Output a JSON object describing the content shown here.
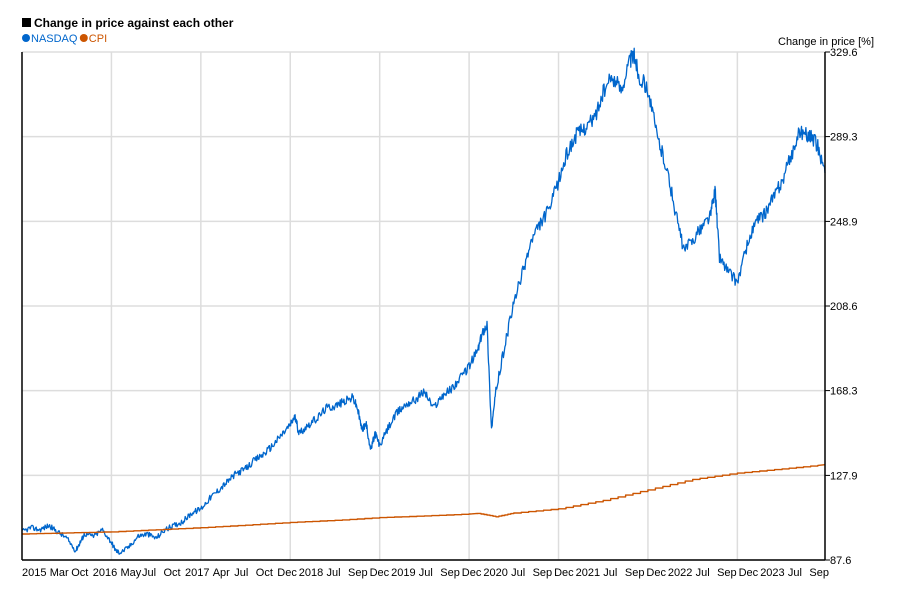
{
  "chart_data": {
    "type": "line",
    "title": "Change in price against each other",
    "ylabel": "Change in price [%]",
    "xlabel": "",
    "ylim": [
      87.6,
      329.6
    ],
    "y_ticks": [
      "87.6",
      "127.9",
      "168.3",
      "208.6",
      "248.9",
      "289.3",
      "329.6"
    ],
    "y_tick_values": [
      87.6,
      127.9,
      168.3,
      208.6,
      248.9,
      289.3,
      329.6
    ],
    "x_ticks": [
      "2015",
      "Mar",
      "Oct",
      "2016",
      "May",
      "Jul",
      "Oct",
      "2017",
      "Apr",
      "Jul",
      "Oct",
      "Dec",
      "2018",
      "Jul",
      "Sep",
      "Dec",
      "2019",
      "Jul",
      "Sep",
      "Dec",
      "2020",
      "Jul",
      "Sep",
      "Dec",
      "2021",
      "Jul",
      "Sep",
      "Dec",
      "2022",
      "Jul",
      "Sep",
      "Dec",
      "2023",
      "Jul",
      "Sep"
    ],
    "x_range": [
      2015.0,
      2023.98
    ],
    "major_years": [
      2016,
      2017,
      2018,
      2019,
      2020,
      2021,
      2022,
      2023
    ],
    "legend_position": "top-left",
    "grid": true,
    "series": [
      {
        "name": "NASDAQ",
        "color": "#0066cc",
        "x": [
          2015.0,
          2015.1,
          2015.2,
          2015.3,
          2015.4,
          2015.5,
          2015.6,
          2015.65,
          2015.7,
          2015.8,
          2015.9,
          2016.0,
          2016.05,
          2016.1,
          2016.2,
          2016.3,
          2016.4,
          2016.5,
          2016.6,
          2016.7,
          2016.8,
          2016.9,
          2017.0,
          2017.1,
          2017.2,
          2017.3,
          2017.4,
          2017.5,
          2017.6,
          2017.7,
          2017.8,
          2017.9,
          2018.0,
          2018.05,
          2018.1,
          2018.2,
          2018.3,
          2018.4,
          2018.5,
          2018.6,
          2018.7,
          2018.75,
          2018.8,
          2018.85,
          2018.9,
          2018.95,
          2019.0,
          2019.1,
          2019.2,
          2019.3,
          2019.4,
          2019.5,
          2019.6,
          2019.7,
          2019.8,
          2019.9,
          2020.0,
          2020.1,
          2020.15,
          2020.2,
          2020.25,
          2020.3,
          2020.4,
          2020.5,
          2020.6,
          2020.7,
          2020.8,
          2020.9,
          2021.0,
          2021.1,
          2021.2,
          2021.3,
          2021.4,
          2021.5,
          2021.6,
          2021.7,
          2021.8,
          2021.85,
          2021.9,
          2022.0,
          2022.1,
          2022.2,
          2022.3,
          2022.4,
          2022.5,
          2022.6,
          2022.7,
          2022.75,
          2022.8,
          2022.9,
          2023.0,
          2023.1,
          2023.2,
          2023.3,
          2023.4,
          2023.5,
          2023.6,
          2023.7,
          2023.8,
          2023.9,
          2023.98
        ],
        "values": [
          101,
          103,
          102,
          104,
          101,
          98,
          92,
          96,
          100,
          99,
          102,
          96,
          92,
          91,
          94,
          99,
          100,
          98,
          102,
          104,
          106,
          110,
          112,
          117,
          121,
          125,
          129,
          131,
          135,
          138,
          142,
          147,
          152,
          156,
          148,
          152,
          155,
          160,
          161,
          163,
          165,
          160,
          150,
          152,
          140,
          148,
          142,
          151,
          158,
          162,
          164,
          168,
          160,
          166,
          169,
          174,
          180,
          188,
          196,
          200,
          150,
          168,
          190,
          210,
          225,
          240,
          248,
          255,
          268,
          282,
          290,
          294,
          298,
          310,
          318,
          312,
          326,
          328,
          318,
          312,
          290,
          276,
          255,
          235,
          240,
          246,
          252,
          264,
          232,
          225,
          220,
          236,
          248,
          252,
          260,
          268,
          280,
          292,
          290,
          285,
          272
        ]
      },
      {
        "name": "CPI",
        "color": "#cc5500",
        "x": [
          2015.0,
          2015.5,
          2016.0,
          2016.5,
          2017.0,
          2017.5,
          2018.0,
          2018.5,
          2019.0,
          2019.5,
          2020.0,
          2020.1,
          2020.3,
          2020.5,
          2021.0,
          2021.5,
          2022.0,
          2022.5,
          2023.0,
          2023.5,
          2023.98
        ],
        "values": [
          100,
          100.5,
          101,
          102,
          103,
          104.2,
          105.5,
          106.5,
          107.8,
          108.6,
          109.5,
          109.8,
          108.2,
          110,
          112,
          116,
          121,
          126,
          129,
          131,
          133
        ]
      }
    ]
  }
}
